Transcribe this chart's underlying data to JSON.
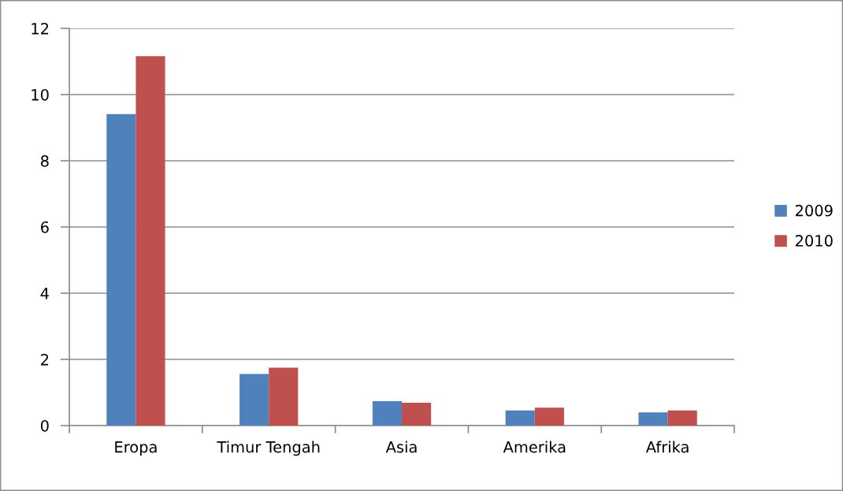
{
  "chart_data": {
    "type": "bar",
    "categories": [
      "Eropa",
      "Timur Tengah",
      "Asia",
      "Amerika",
      "Afrika"
    ],
    "series": [
      {
        "name": "2009",
        "color": "#4f81bd",
        "values": [
          9.41,
          1.56,
          0.74,
          0.46,
          0.4
        ]
      },
      {
        "name": "2010",
        "color": "#c0504d",
        "values": [
          11.16,
          1.75,
          0.69,
          0.54,
          0.46
        ]
      }
    ],
    "ylim": [
      0,
      12
    ],
    "yticks": [
      0,
      2,
      4,
      6,
      8,
      10,
      12
    ],
    "grid": "y",
    "legend": "right"
  }
}
